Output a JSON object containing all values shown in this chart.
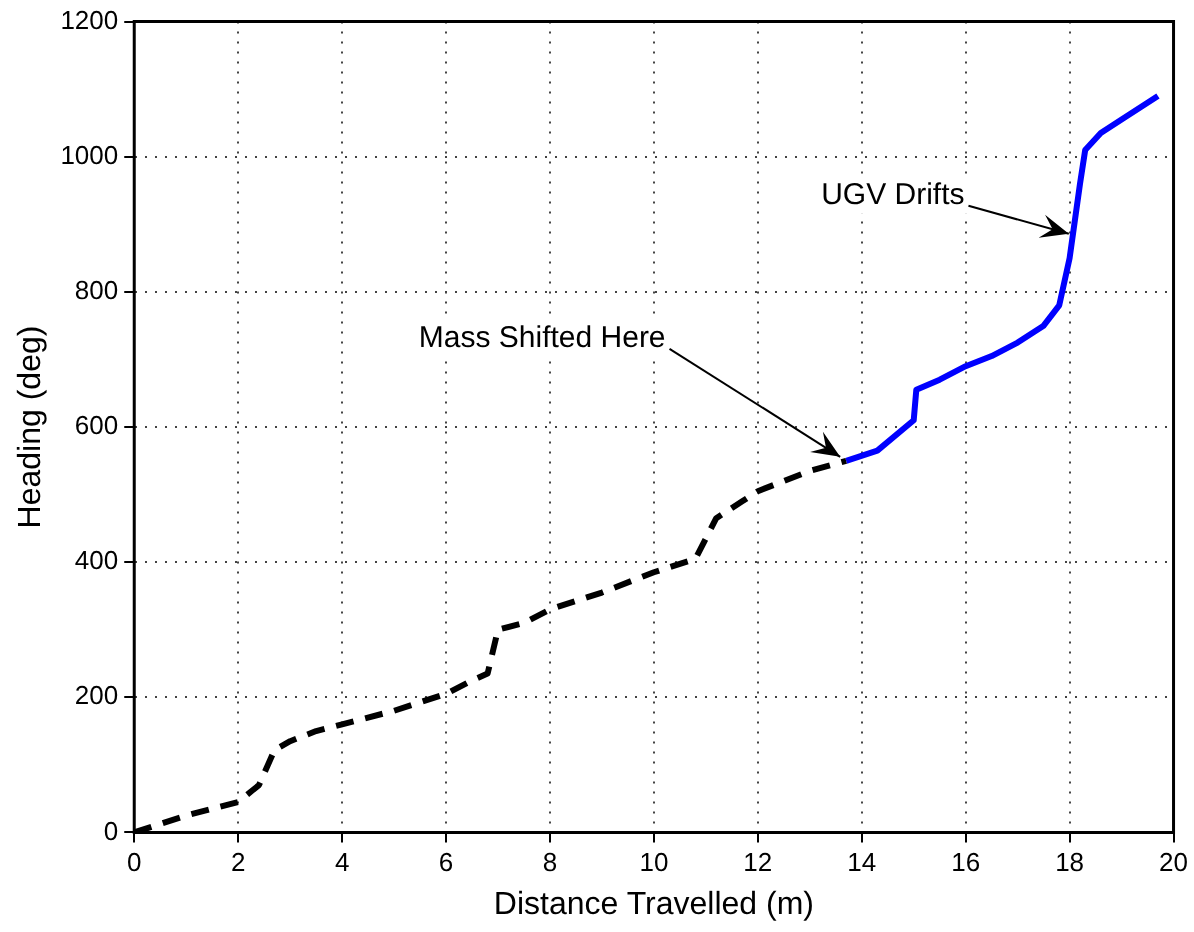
{
  "chart_data": {
    "type": "line",
    "xlabel": "Distance Travelled (m)",
    "ylabel": "Heading (deg)",
    "xlim": [
      0,
      20
    ],
    "xticks": [
      0,
      2,
      4,
      6,
      8,
      10,
      12,
      14,
      16,
      18,
      20
    ],
    "ylim": [
      0,
      1200
    ],
    "yticks": [
      0,
      200,
      400,
      600,
      800,
      1000,
      1200
    ],
    "grid": true,
    "legend": false,
    "marker": "none",
    "series": [
      {
        "color": "#000000",
        "line_style": "dashed",
        "x": [
          0,
          1,
          2,
          2.4,
          2.7,
          3,
          3.5,
          4,
          5,
          6,
          6.5,
          6.8,
          7,
          7.5,
          8,
          9,
          10,
          10.8,
          11.2,
          11.7,
          12,
          13,
          13.7
        ],
        "values": [
          0,
          25,
          45,
          70,
          122,
          135,
          150,
          160,
          180,
          205,
          225,
          235,
          300,
          310,
          330,
          355,
          385,
          405,
          465,
          490,
          505,
          535,
          550
        ]
      },
      {
        "color": "#0000ff",
        "line_style": "solid",
        "x": [
          13.7,
          14.3,
          15,
          15.05,
          15.5,
          16,
          16.5,
          17,
          17.5,
          17.8,
          18,
          18.2,
          18.3,
          18.6,
          19,
          19.7
        ],
        "values": [
          550,
          565,
          610,
          655,
          670,
          690,
          705,
          725,
          750,
          780,
          850,
          960,
          1010,
          1035,
          1055,
          1090
        ]
      }
    ],
    "annotations": [
      {
        "text": "Mass Shifted Here",
        "x": 13.7,
        "y": 550
      },
      {
        "text": "UGV Drifts",
        "x": 18.1,
        "y": 880
      }
    ]
  }
}
